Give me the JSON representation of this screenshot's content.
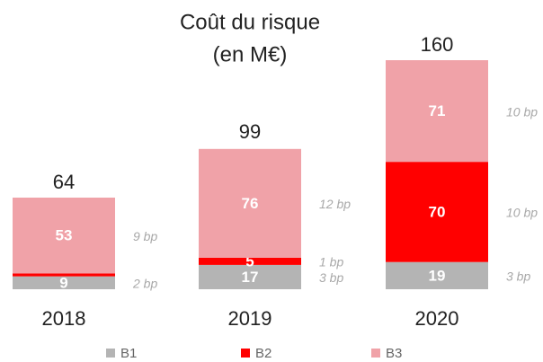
{
  "chart_data": {
    "type": "stacked-bar",
    "title": [
      "Coût du risque",
      "(en M€)"
    ],
    "categories": [
      "2018",
      "2019",
      "2020"
    ],
    "totals": [
      64,
      99,
      160
    ],
    "series": [
      {
        "name": "B1",
        "color": "#b4b4b4",
        "values": [
          9,
          17,
          19
        ],
        "bp_labels": [
          "2 bp",
          "3 bp",
          "3 bp"
        ]
      },
      {
        "name": "B2",
        "color": "#ff0000",
        "values": [
          2,
          5,
          70
        ],
        "value_labels": [
          null,
          "5",
          "70"
        ],
        "bp_labels": [
          null,
          "1 bp",
          "10 bp"
        ]
      },
      {
        "name": "B3",
        "color": "#f0a2a8",
        "values": [
          53,
          76,
          71
        ],
        "bp_labels": [
          "9 bp",
          "12 bp",
          "10 bp"
        ]
      }
    ],
    "legend": "bottom"
  }
}
